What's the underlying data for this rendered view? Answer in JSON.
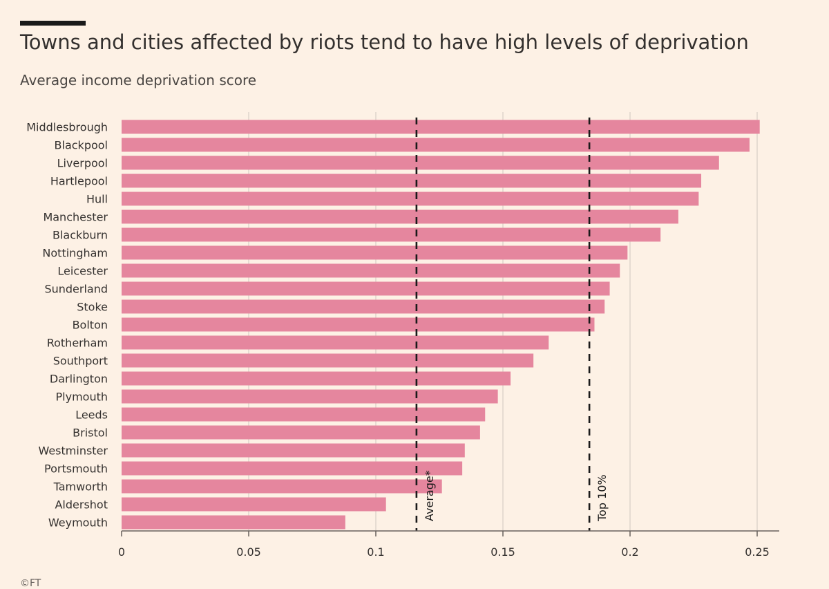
{
  "title": "Towns and cities affected by riots tend to have high levels of deprivation",
  "subtitle": "Average income deprivation score",
  "credit": "©FT",
  "colors": {
    "background": "#fdf1e5",
    "bar": "#e5869e",
    "grid": "#d8cfc6",
    "axis": "#66605c",
    "reference": "#1a1a1a"
  },
  "chart_data": {
    "type": "bar",
    "orientation": "horizontal",
    "title": "Towns and cities affected by riots tend to have high levels of deprivation",
    "subtitle": "Average income deprivation score",
    "xlabel": "",
    "ylabel": "",
    "xlim": [
      0,
      0.26
    ],
    "xticks": [
      0,
      0.05,
      0.1,
      0.15,
      0.2,
      0.25
    ],
    "xtick_labels": [
      "0",
      "0.05",
      "0.1",
      "0.15",
      "0.2",
      "0.25"
    ],
    "grid": true,
    "categories": [
      "Middlesbrough",
      "Blackpool",
      "Liverpool",
      "Hartlepool",
      "Hull",
      "Manchester",
      "Blackburn",
      "Nottingham",
      "Leicester",
      "Sunderland",
      "Stoke",
      "Bolton",
      "Rotherham",
      "Southport",
      "Darlington",
      "Plymouth",
      "Leeds",
      "Bristol",
      "Westminster",
      "Portsmouth",
      "Tamworth",
      "Aldershot",
      "Weymouth"
    ],
    "values": [
      0.251,
      0.247,
      0.235,
      0.228,
      0.227,
      0.219,
      0.212,
      0.199,
      0.196,
      0.192,
      0.19,
      0.186,
      0.168,
      0.162,
      0.153,
      0.148,
      0.143,
      0.141,
      0.135,
      0.134,
      0.126,
      0.104,
      0.088
    ],
    "reference_lines": [
      {
        "label": "Average*",
        "value": 0.116
      },
      {
        "label": "Top 10%",
        "value": 0.184
      }
    ]
  }
}
